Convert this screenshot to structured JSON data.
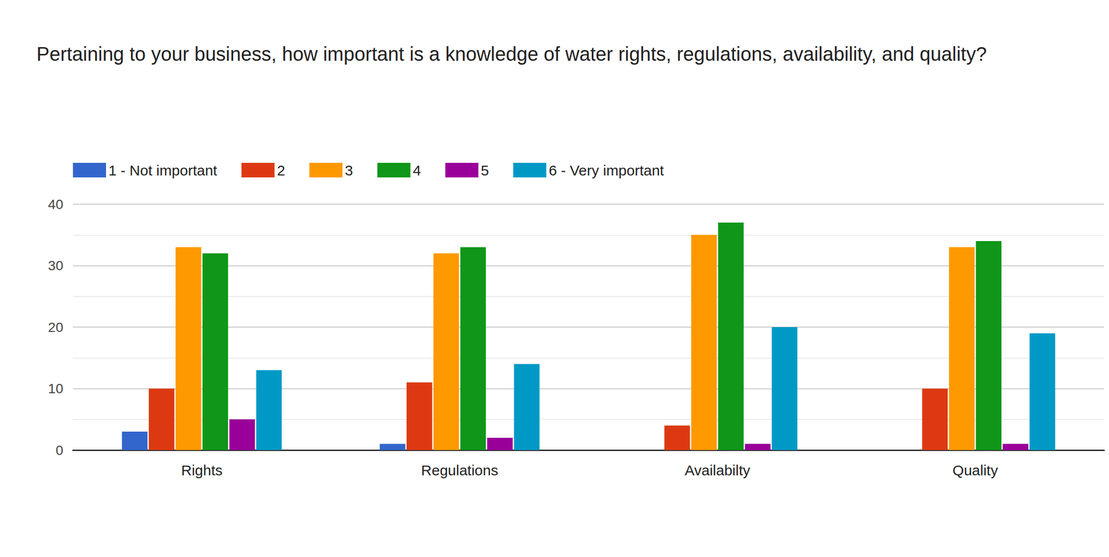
{
  "chart_data": {
    "type": "bar",
    "title": "Pertaining to your business, how important is a knowledge of water rights, regulations, availability, and quality?",
    "categories": [
      "Rights",
      "Regulations",
      "Availabilty",
      "Quality"
    ],
    "series": [
      {
        "name": "1 - Not important",
        "color": "#3366cc",
        "values": [
          3,
          1,
          0,
          0
        ]
      },
      {
        "name": "2",
        "color": "#dc3912",
        "values": [
          10,
          11,
          4,
          10
        ]
      },
      {
        "name": "3",
        "color": "#ff9900",
        "values": [
          33,
          32,
          35,
          33
        ]
      },
      {
        "name": "4",
        "color": "#109618",
        "values": [
          32,
          33,
          37,
          34
        ]
      },
      {
        "name": "5",
        "color": "#990099",
        "values": [
          5,
          2,
          1,
          1
        ]
      },
      {
        "name": "6 - Very important",
        "color": "#0099c6",
        "values": [
          13,
          14,
          20,
          19
        ]
      }
    ],
    "ylim": [
      0,
      40
    ],
    "yticks": [
      0,
      10,
      20,
      30,
      40
    ],
    "grid": true,
    "legend": "top-left"
  }
}
